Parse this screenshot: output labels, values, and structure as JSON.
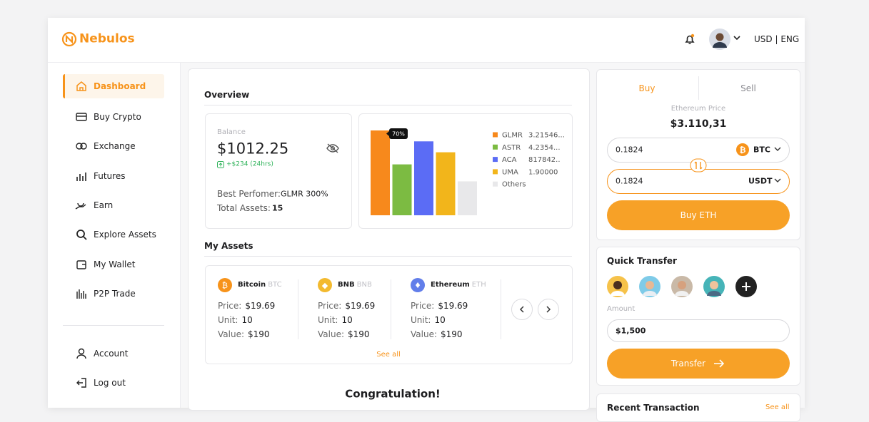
{
  "header": {
    "logo": "Nebulos",
    "locale": "USD | ENG"
  },
  "sidebar": {
    "menu": [
      "Dashboard",
      "Buy Crypto",
      "Exchange",
      "Futures",
      "Earn",
      "Explore Assets",
      "My Wallet",
      "P2P Trade"
    ],
    "account": [
      "Account",
      "Log out"
    ]
  },
  "overview": {
    "title": "Overview",
    "balance_label": "Balance",
    "balance": "$1012.25",
    "change": "+$234 (24hrs)",
    "best_label": "Best Perfomer:",
    "best_value": "GLMR 300%",
    "total_label": "Total Assets:",
    "total_value": "15",
    "chart": {
      "type": "bar",
      "tooltip": "70%",
      "ylim": [
        0,
        70
      ],
      "categories": [
        "GLMR",
        "ASTR",
        "ACA",
        "UMA",
        "Others"
      ],
      "values": [
        70,
        42,
        61,
        52,
        28
      ],
      "value_labels": [
        "3.21546...",
        "4.2354...",
        "817842..",
        "1.90000",
        null
      ],
      "colors": [
        "#f7891c",
        "#7cbb42",
        "#5b6cf5",
        "#f2b51b",
        "#e8e8ea"
      ]
    }
  },
  "assets": {
    "title": "My Assets",
    "field_labels": [
      "Price:",
      "Unit:",
      "Value:"
    ],
    "see_all": "See all",
    "items": [
      {
        "name": "Bitcoin",
        "symbol": "BTC",
        "price": "$19.69",
        "unit": "10",
        "value": "$190"
      },
      {
        "name": "BNB",
        "symbol": "BNB",
        "price": "$19.69",
        "unit": "10",
        "value": "$190"
      },
      {
        "name": "Ethereum",
        "symbol": "ETH",
        "price": "$19.69",
        "unit": "10",
        "value": "$190"
      }
    ]
  },
  "congrats": "Congratulation!",
  "trade": {
    "tabs": [
      "Buy",
      "Sell"
    ],
    "price_label": "Ethereum Price",
    "price": "$3.110,31",
    "from_amount": "0.1824",
    "from_currency": "BTC",
    "to_amount": "0.1824",
    "to_currency": "USDT",
    "button": "Buy ETH"
  },
  "transfer": {
    "title": "Quick Transfer",
    "amount_label": "Amount",
    "amount": "$1,500",
    "button": "Transfer"
  },
  "recent": {
    "title": "Recent Transaction",
    "see_all": "See all"
  }
}
